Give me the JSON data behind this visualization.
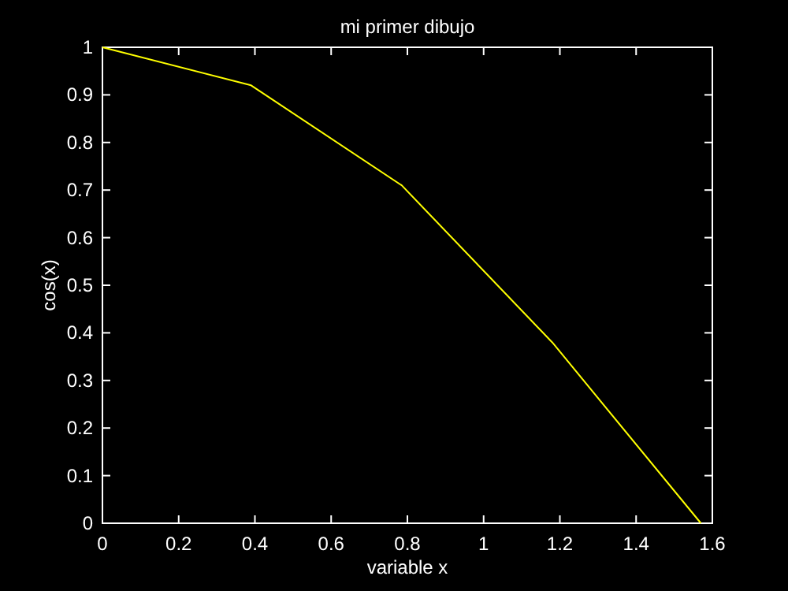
{
  "chart_data": {
    "type": "line",
    "title": "mi primer dibujo",
    "xlabel": "variable x",
    "ylabel": "cos(x)",
    "x": [
      0,
      0.39,
      0.785,
      1.18,
      1.57
    ],
    "series": [
      {
        "color": "#ffff00",
        "values": [
          1,
          0.92,
          0.71,
          0.38,
          0
        ]
      }
    ],
    "xlim": [
      0,
      1.6
    ],
    "xticks": [
      0,
      0.2,
      0.4,
      0.6,
      0.8,
      1,
      1.2,
      1.4,
      1.6
    ],
    "ylim": [
      0,
      1
    ],
    "yticks": [
      0,
      0.1,
      0.2,
      0.3,
      0.4,
      0.5,
      0.6,
      0.7,
      0.8,
      0.9,
      1
    ],
    "grid": false,
    "marker": "none",
    "line_style": "solid"
  }
}
